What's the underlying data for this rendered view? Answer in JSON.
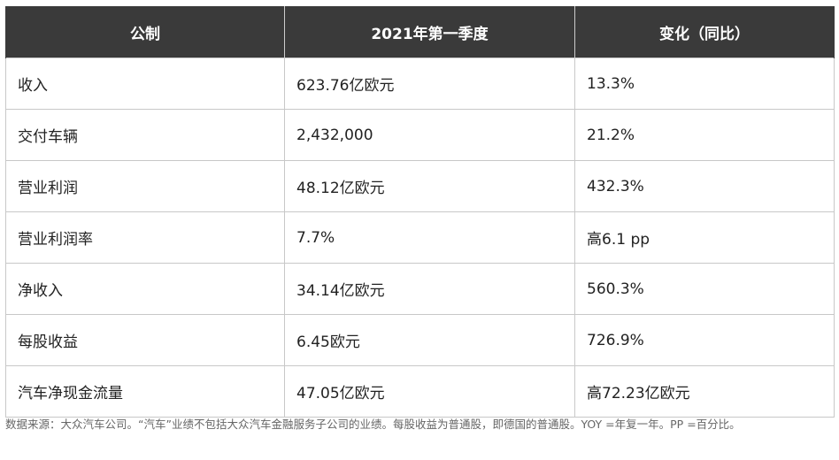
{
  "table": {
    "headers": [
      "公制",
      "2021年第一季度",
      "变化（同比）"
    ],
    "rows": [
      [
        "收入",
        "623.76亿欧元",
        "13.3%"
      ],
      [
        "交付车辆",
        "2,432,000",
        "21.2%"
      ],
      [
        "营业利润",
        "48.12亿欧元",
        "432.3%"
      ],
      [
        "营业利润率",
        "7.7%",
        "高6.1 pp"
      ],
      [
        "净收入",
        "34.14亿欧元",
        "560.3%"
      ],
      [
        "每股收益",
        "6.45欧元",
        "726.9%"
      ],
      [
        "汽车净现金流量",
        "47.05亿欧元",
        "高72.23亿欧元"
      ]
    ]
  },
  "footnote": "数据来源：大众汽车公司。“汽车”业绩不包括大众汽车金融服务子公司的业绩。每股收益为普通股，即德国的普通股。YOY =年复一年。PP =百分比。",
  "colors": {
    "header_bg": "#3a3a3a",
    "header_text": "#ffffff",
    "border": "#c8c8c8",
    "note_text": "#666666"
  }
}
